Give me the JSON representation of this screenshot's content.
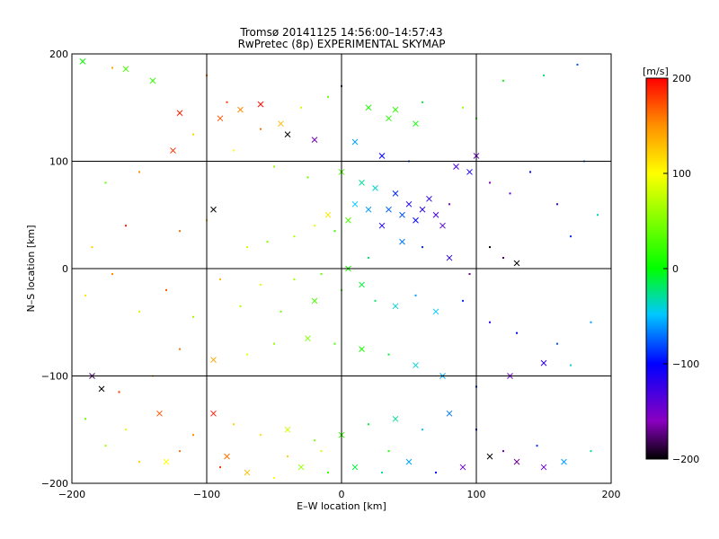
{
  "chart_data": {
    "type": "scatter",
    "title": "Tromsø 20141125 14:56:00–14:57:43",
    "subtitle": "RwPretec (8p) EXPERIMENTAL SKYMAP",
    "xlabel": "E–W location [km]",
    "ylabel": "N–S location [km]",
    "xlim": [
      -200,
      200
    ],
    "ylim": [
      -200,
      200
    ],
    "xticks": [
      -200,
      -100,
      0,
      100,
      200
    ],
    "yticks": [
      -200,
      -100,
      0,
      100,
      200
    ],
    "grid": true,
    "marker_types": [
      "dot",
      "x"
    ],
    "colorbar": {
      "label": "[m/s]",
      "range": [
        -200,
        200
      ],
      "ticks": [
        200,
        100,
        0,
        -100,
        -200
      ],
      "colormap": "rainbow (black-purple-blue-cyan-green-yellow-orange-red)"
    },
    "clusters": [
      {
        "region": "west (x < -100)",
        "typical_velocity_ms": 150
      },
      {
        "region": "center-west (-100 < x < 0)",
        "typical_velocity_ms": 60
      },
      {
        "region": "north-center (0 < x < 60, y 100..160)",
        "typical_velocity_ms": 10
      },
      {
        "region": "north-east (20 < x < 100, y 20..100)",
        "typical_velocity_ms": -100
      },
      {
        "region": "east (x > 100)",
        "typical_velocity_ms": -120
      },
      {
        "region": "south-east (0 < x < 100, y < 0)",
        "typical_velocity_ms": -40
      }
    ],
    "points": [
      [
        -192,
        193,
        2,
        "x"
      ],
      [
        -170,
        187,
        140,
        "d"
      ],
      [
        -160,
        186,
        30,
        "x"
      ],
      [
        -140,
        175,
        20,
        "x"
      ],
      [
        -100,
        180,
        155,
        "d"
      ],
      [
        -60,
        153,
        195,
        "x"
      ],
      [
        -75,
        148,
        150,
        "x"
      ],
      [
        -85,
        155,
        180,
        "d"
      ],
      [
        -120,
        145,
        190,
        "x"
      ],
      [
        -90,
        140,
        170,
        "x"
      ],
      [
        -45,
        135,
        130,
        "x"
      ],
      [
        -60,
        130,
        160,
        "d"
      ],
      [
        -30,
        150,
        80,
        "d"
      ],
      [
        -10,
        160,
        40,
        "d"
      ],
      [
        0,
        170,
        -180,
        "d"
      ],
      [
        20,
        150,
        10,
        "x"
      ],
      [
        40,
        148,
        20,
        "x"
      ],
      [
        35,
        140,
        15,
        "x"
      ],
      [
        55,
        135,
        5,
        "x"
      ],
      [
        60,
        155,
        -10,
        "d"
      ],
      [
        90,
        150,
        60,
        "d"
      ],
      [
        100,
        140,
        20,
        "d"
      ],
      [
        120,
        175,
        0,
        "d"
      ],
      [
        150,
        180,
        -20,
        "d"
      ],
      [
        175,
        190,
        -80,
        "d"
      ],
      [
        -40,
        125,
        -200,
        "x"
      ],
      [
        -20,
        120,
        -150,
        "x"
      ],
      [
        10,
        118,
        -60,
        "x"
      ],
      [
        30,
        105,
        -100,
        "x"
      ],
      [
        50,
        100,
        -70,
        "d"
      ],
      [
        -110,
        125,
        120,
        "d"
      ],
      [
        -125,
        110,
        185,
        "x"
      ],
      [
        -150,
        90,
        150,
        "d"
      ],
      [
        -175,
        80,
        40,
        "d"
      ],
      [
        -80,
        110,
        100,
        "d"
      ],
      [
        -50,
        95,
        60,
        "d"
      ],
      [
        -25,
        85,
        40,
        "d"
      ],
      [
        0,
        90,
        30,
        "x"
      ],
      [
        15,
        80,
        -30,
        "x"
      ],
      [
        25,
        75,
        -40,
        "x"
      ],
      [
        40,
        70,
        -90,
        "x"
      ],
      [
        50,
        60,
        -110,
        "x"
      ],
      [
        60,
        55,
        -120,
        "x"
      ],
      [
        70,
        50,
        -130,
        "x"
      ],
      [
        55,
        45,
        -100,
        "x"
      ],
      [
        45,
        50,
        -80,
        "x"
      ],
      [
        35,
        55,
        -75,
        "x"
      ],
      [
        65,
        65,
        -115,
        "x"
      ],
      [
        75,
        40,
        -140,
        "x"
      ],
      [
        80,
        60,
        -150,
        "d"
      ],
      [
        30,
        40,
        -110,
        "x"
      ],
      [
        20,
        55,
        -60,
        "x"
      ],
      [
        10,
        60,
        -50,
        "x"
      ],
      [
        5,
        45,
        30,
        "x"
      ],
      [
        -5,
        35,
        20,
        "d"
      ],
      [
        -10,
        50,
        110,
        "x"
      ],
      [
        -20,
        40,
        90,
        "d"
      ],
      [
        -35,
        30,
        70,
        "d"
      ],
      [
        -55,
        25,
        50,
        "d"
      ],
      [
        -70,
        20,
        80,
        "d"
      ],
      [
        -95,
        55,
        -200,
        "x"
      ],
      [
        -100,
        45,
        130,
        "d"
      ],
      [
        -120,
        35,
        160,
        "d"
      ],
      [
        -160,
        40,
        190,
        "d"
      ],
      [
        -185,
        20,
        120,
        "d"
      ],
      [
        85,
        95,
        -130,
        "x"
      ],
      [
        95,
        90,
        -110,
        "x"
      ],
      [
        100,
        105,
        -150,
        "x"
      ],
      [
        110,
        80,
        -160,
        "d"
      ],
      [
        125,
        70,
        -140,
        "d"
      ],
      [
        140,
        90,
        -100,
        "d"
      ],
      [
        160,
        60,
        -120,
        "d"
      ],
      [
        180,
        100,
        -60,
        "d"
      ],
      [
        170,
        30,
        -90,
        "d"
      ],
      [
        190,
        50,
        -40,
        "d"
      ],
      [
        110,
        20,
        -200,
        "d"
      ],
      [
        120,
        10,
        -180,
        "d"
      ],
      [
        130,
        5,
        -200,
        "x"
      ],
      [
        95,
        -5,
        -170,
        "d"
      ],
      [
        80,
        10,
        -120,
        "x"
      ],
      [
        60,
        20,
        -90,
        "d"
      ],
      [
        45,
        25,
        -70,
        "x"
      ],
      [
        20,
        10,
        -20,
        "d"
      ],
      [
        5,
        0,
        10,
        "x"
      ],
      [
        -15,
        -5,
        40,
        "d"
      ],
      [
        -35,
        -10,
        60,
        "d"
      ],
      [
        -60,
        -15,
        90,
        "d"
      ],
      [
        -90,
        -10,
        130,
        "d"
      ],
      [
        -130,
        -20,
        170,
        "d"
      ],
      [
        -170,
        -5,
        150,
        "d"
      ],
      [
        -190,
        -25,
        110,
        "d"
      ],
      [
        -150,
        -40,
        80,
        "d"
      ],
      [
        -110,
        -45,
        60,
        "d"
      ],
      [
        -75,
        -35,
        70,
        "d"
      ],
      [
        -45,
        -40,
        40,
        "d"
      ],
      [
        -20,
        -30,
        30,
        "x"
      ],
      [
        0,
        -20,
        20,
        "d"
      ],
      [
        15,
        -15,
        -10,
        "x"
      ],
      [
        25,
        -30,
        -20,
        "d"
      ],
      [
        40,
        -35,
        -40,
        "x"
      ],
      [
        55,
        -25,
        -60,
        "d"
      ],
      [
        70,
        -40,
        -50,
        "x"
      ],
      [
        90,
        -30,
        -90,
        "d"
      ],
      [
        110,
        -50,
        -120,
        "d"
      ],
      [
        130,
        -60,
        -100,
        "d"
      ],
      [
        160,
        -70,
        -80,
        "d"
      ],
      [
        185,
        -50,
        -60,
        "d"
      ],
      [
        170,
        -90,
        -40,
        "d"
      ],
      [
        150,
        -88,
        -120,
        "x"
      ],
      [
        125,
        -100,
        -150,
        "x"
      ],
      [
        100,
        -110,
        -90,
        "d"
      ],
      [
        75,
        -100,
        -60,
        "x"
      ],
      [
        55,
        -90,
        -40,
        "x"
      ],
      [
        35,
        -80,
        -10,
        "d"
      ],
      [
        15,
        -75,
        10,
        "x"
      ],
      [
        -5,
        -70,
        30,
        "d"
      ],
      [
        -25,
        -65,
        50,
        "x"
      ],
      [
        -50,
        -70,
        60,
        "d"
      ],
      [
        -70,
        -80,
        90,
        "d"
      ],
      [
        -95,
        -85,
        140,
        "x"
      ],
      [
        -120,
        -75,
        160,
        "d"
      ],
      [
        -140,
        -100,
        130,
        "d"
      ],
      [
        -165,
        -115,
        180,
        "d"
      ],
      [
        -185,
        -100,
        -180,
        "x"
      ],
      [
        -178,
        -112,
        -200,
        "x"
      ],
      [
        -190,
        -140,
        40,
        "d"
      ],
      [
        -160,
        -150,
        90,
        "d"
      ],
      [
        -135,
        -135,
        170,
        "x"
      ],
      [
        -110,
        -155,
        150,
        "d"
      ],
      [
        -95,
        -135,
        190,
        "x"
      ],
      [
        -80,
        -145,
        120,
        "d"
      ],
      [
        -60,
        -155,
        110,
        "d"
      ],
      [
        -40,
        -150,
        80,
        "x"
      ],
      [
        -20,
        -160,
        50,
        "d"
      ],
      [
        0,
        -155,
        20,
        "x"
      ],
      [
        20,
        -145,
        -10,
        "d"
      ],
      [
        40,
        -140,
        -30,
        "x"
      ],
      [
        60,
        -150,
        -50,
        "d"
      ],
      [
        80,
        -135,
        -70,
        "x"
      ],
      [
        100,
        -150,
        -100,
        "d"
      ],
      [
        120,
        -170,
        -140,
        "d"
      ],
      [
        145,
        -165,
        -90,
        "d"
      ],
      [
        165,
        -180,
        -60,
        "x"
      ],
      [
        185,
        -170,
        -30,
        "d"
      ],
      [
        150,
        -185,
        -150,
        "x"
      ],
      [
        130,
        -180,
        -170,
        "x"
      ],
      [
        110,
        -175,
        -200,
        "x"
      ],
      [
        90,
        -185,
        -150,
        "x"
      ],
      [
        70,
        -190,
        -100,
        "d"
      ],
      [
        50,
        -180,
        -60,
        "x"
      ],
      [
        30,
        -190,
        -30,
        "d"
      ],
      [
        10,
        -185,
        -10,
        "x"
      ],
      [
        -10,
        -190,
        20,
        "d"
      ],
      [
        -30,
        -185,
        60,
        "x"
      ],
      [
        -50,
        -195,
        100,
        "d"
      ],
      [
        -70,
        -190,
        130,
        "x"
      ],
      [
        -90,
        -185,
        180,
        "d"
      ],
      [
        -120,
        -170,
        160,
        "d"
      ],
      [
        -150,
        -180,
        120,
        "d"
      ],
      [
        -175,
        -165,
        60,
        "d"
      ],
      [
        -130,
        -180,
        100,
        "x"
      ],
      [
        -85,
        -175,
        160,
        "x"
      ],
      [
        -40,
        -175,
        120,
        "d"
      ],
      [
        -15,
        -170,
        80,
        "d"
      ],
      [
        35,
        -170,
        10,
        "d"
      ]
    ]
  }
}
